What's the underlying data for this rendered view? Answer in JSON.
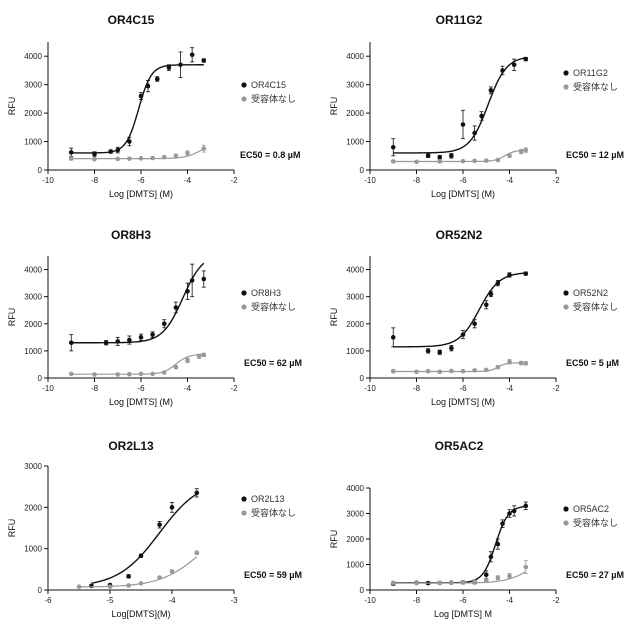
{
  "chart_data": [
    {
      "type": "scatter",
      "title": "OR4C15",
      "xlabel": "Log [DMTS]  (M)",
      "ylabel": "RFU",
      "xlim": [
        -10,
        -2
      ],
      "ylim": [
        0,
        4500
      ],
      "xticks": [
        "-10",
        "-8",
        "-6",
        "-4",
        "-2"
      ],
      "yticks": [
        "0",
        "1000",
        "2000",
        "3000",
        "4000"
      ],
      "legend_placement": "right",
      "annotation": "EC50 = 0.8 µM",
      "series": [
        {
          "name": "OR4C15",
          "color": "#111111",
          "x": [
            -9,
            -8,
            -7.3,
            -7,
            -6.5,
            -6,
            -5.7,
            -5.3,
            -4.8,
            -4.3,
            -3.8,
            -3.3
          ],
          "y": [
            620,
            560,
            650,
            700,
            1000,
            2600,
            2950,
            3200,
            3600,
            3700,
            4050,
            3850
          ],
          "err": [
            150,
            80,
            60,
            100,
            150,
            120,
            200,
            80,
            100,
            450,
            250,
            60
          ],
          "fit": {
            "bottom": 600,
            "top": 3700,
            "logec50": -6.1,
            "hill": 1.6
          }
        },
        {
          "name": "受容体なし",
          "color": "#999999",
          "x": [
            -9,
            -8,
            -7,
            -6.5,
            -6,
            -5.5,
            -5,
            -4.5,
            -4,
            -3.3
          ],
          "y": [
            400,
            380,
            390,
            400,
            410,
            420,
            450,
            500,
            600,
            750
          ],
          "err": [
            40,
            30,
            30,
            30,
            30,
            30,
            40,
            50,
            70,
            120
          ],
          "fit": {
            "bottom": 400,
            "top": 1100,
            "logec50": -3.3,
            "hill": 1.2
          }
        }
      ]
    },
    {
      "type": "scatter",
      "title": "OR11G2",
      "xlabel": "Log [DMTS]  (M)",
      "ylabel": "RFU",
      "xlim": [
        -10,
        -2
      ],
      "ylim": [
        0,
        4500
      ],
      "xticks": [
        "-10",
        "-8",
        "-6",
        "-4",
        "-2"
      ],
      "yticks": [
        "0",
        "1000",
        "2000",
        "3000",
        "4000"
      ],
      "legend_placement": "right",
      "annotation": "EC50 = 12 µM",
      "series": [
        {
          "name": "OR11G2",
          "color": "#111111",
          "x": [
            -9,
            -7.5,
            -7,
            -6.5,
            -6,
            -5.5,
            -5.2,
            -4.8,
            -4.3,
            -3.8,
            -3.3
          ],
          "y": [
            800,
            500,
            450,
            500,
            1600,
            1300,
            1900,
            2800,
            3500,
            3700,
            3900
          ],
          "err": [
            300,
            60,
            60,
            80,
            500,
            250,
            150,
            120,
            150,
            200,
            60
          ],
          "fit": {
            "bottom": 600,
            "top": 4000,
            "logec50": -4.92,
            "hill": 1.1
          }
        },
        {
          "name": "受容体なし",
          "color": "#999999",
          "x": [
            -9,
            -8,
            -7,
            -6,
            -5.5,
            -5,
            -4.5,
            -4,
            -3.5,
            -3.3
          ],
          "y": [
            300,
            290,
            300,
            310,
            320,
            330,
            350,
            500,
            650,
            700
          ],
          "err": [
            40,
            30,
            30,
            30,
            30,
            30,
            40,
            60,
            80,
            80
          ],
          "fit": {
            "bottom": 300,
            "top": 700,
            "logec50": -4.2,
            "hill": 2.0
          }
        }
      ]
    },
    {
      "type": "scatter",
      "title": "OR8H3",
      "xlabel": "Log [DMTS]  (M)",
      "ylabel": "RFU",
      "xlim": [
        -10,
        -2
      ],
      "ylim": [
        0,
        4500
      ],
      "xticks": [
        "-10",
        "-8",
        "-6",
        "-4",
        "-2"
      ],
      "yticks": [
        "0",
        "1000",
        "2000",
        "3000",
        "4000"
      ],
      "legend_placement": "right",
      "annotation": "EC50 = 62 µM",
      "series": [
        {
          "name": "OR8H3",
          "color": "#111111",
          "x": [
            -9,
            -7.5,
            -7,
            -6.5,
            -6,
            -5.5,
            -5,
            -4.5,
            -4,
            -3.8,
            -3.3
          ],
          "y": [
            1300,
            1300,
            1350,
            1400,
            1500,
            1600,
            2000,
            2600,
            3200,
            3600,
            3650
          ],
          "err": [
            300,
            80,
            150,
            150,
            120,
            100,
            150,
            200,
            300,
            600,
            300
          ],
          "fit": {
            "bottom": 1300,
            "top": 4600,
            "logec50": -4.2,
            "hill": 1.0
          }
        },
        {
          "name": "受容体なし",
          "color": "#999999",
          "x": [
            -9,
            -8,
            -7,
            -6.5,
            -6,
            -5.5,
            -5,
            -4.5,
            -4,
            -3.5,
            -3.3
          ],
          "y": [
            150,
            130,
            130,
            140,
            150,
            150,
            200,
            400,
            650,
            800,
            850
          ],
          "err": [
            30,
            20,
            20,
            20,
            20,
            20,
            30,
            60,
            80,
            80,
            60
          ],
          "fit": {
            "bottom": 140,
            "top": 880,
            "logec50": -4.5,
            "hill": 1.6
          }
        }
      ]
    },
    {
      "type": "scatter",
      "title": "OR52N2",
      "xlabel": "Log [DMTS]  (M)",
      "ylabel": "RFU",
      "xlim": [
        -10,
        -2
      ],
      "ylim": [
        0,
        4500
      ],
      "xticks": [
        "-10",
        "-8",
        "-6",
        "-4",
        "-2"
      ],
      "yticks": [
        "0",
        "1000",
        "2000",
        "3000",
        "4000"
      ],
      "legend_placement": "right",
      "annotation": "EC50 = 5 µM",
      "series": [
        {
          "name": "OR52N2",
          "color": "#111111",
          "x": [
            -9,
            -7.5,
            -7,
            -6.5,
            -6,
            -5.5,
            -5,
            -4.8,
            -4.5,
            -4,
            -3.3
          ],
          "y": [
            1500,
            1000,
            950,
            1100,
            1600,
            2000,
            2700,
            3100,
            3500,
            3800,
            3850
          ],
          "err": [
            350,
            80,
            80,
            100,
            150,
            150,
            150,
            100,
            100,
            80,
            60
          ],
          "fit": {
            "bottom": 1150,
            "top": 3900,
            "logec50": -5.3,
            "hill": 1.0
          }
        },
        {
          "name": "受容体なし",
          "color": "#999999",
          "x": [
            -9,
            -8,
            -7.5,
            -7,
            -6.5,
            -6,
            -5.5,
            -5,
            -4.5,
            -4,
            -3.5,
            -3.3
          ],
          "y": [
            250,
            230,
            250,
            230,
            260,
            250,
            280,
            300,
            400,
            600,
            550,
            540
          ],
          "err": [
            60,
            40,
            40,
            40,
            40,
            40,
            40,
            40,
            60,
            80,
            60,
            60
          ],
          "fit": {
            "bottom": 240,
            "top": 560,
            "logec50": -4.5,
            "hill": 2.5
          }
        }
      ]
    },
    {
      "type": "scatter",
      "title": "OR2L13",
      "xlabel": "Log[DMTS](M)",
      "ylabel": "RFU",
      "xlim": [
        -6,
        -3
      ],
      "ylim": [
        0,
        3000
      ],
      "xticks": [
        "-6",
        "-5",
        "-4",
        "-3"
      ],
      "yticks": [
        "0",
        "1000",
        "2000",
        "3000"
      ],
      "legend_placement": "right",
      "annotation": "EC50 = 59 µM",
      "series": [
        {
          "name": "OR2L13",
          "color": "#111111",
          "x": [
            -5.3,
            -5,
            -4.7,
            -4.5,
            -4.2,
            -4,
            -3.6
          ],
          "y": [
            100,
            120,
            330,
            830,
            1580,
            2000,
            2350
          ],
          "err": [
            30,
            30,
            40,
            40,
            80,
            120,
            100
          ],
          "fit": {
            "bottom": 70,
            "top": 2700,
            "logec50": -4.2,
            "hill": 1.3
          }
        },
        {
          "name": "受容体なし",
          "color": "#999999",
          "x": [
            -5.5,
            -5,
            -4.7,
            -4.5,
            -4.2,
            -4,
            -3.6
          ],
          "y": [
            80,
            80,
            110,
            160,
            300,
            450,
            900
          ],
          "err": [
            20,
            20,
            20,
            20,
            30,
            30,
            40
          ],
          "fit": {
            "bottom": 70,
            "top": 1800,
            "logec50": -3.5,
            "hill": 1.3
          }
        }
      ]
    },
    {
      "type": "scatter",
      "title": "OR5AC2",
      "xlabel": "Log [DMTS]  M",
      "ylabel": "RFU",
      "xlim": [
        -10,
        -2
      ],
      "ylim": [
        0,
        4000
      ],
      "xticks": [
        "-10",
        "-8",
        "-6",
        "-4",
        "-2"
      ],
      "yticks": [
        "0",
        "1000",
        "2000",
        "3000",
        "4000"
      ],
      "legend_placement": "right",
      "annotation": "EC50 = 27 µM",
      "series": [
        {
          "name": "OR5AC2",
          "color": "#111111",
          "x": [
            -9,
            -8,
            -7.5,
            -7,
            -6.5,
            -6,
            -5.5,
            -5,
            -4.8,
            -4.5,
            -4.3,
            -4,
            -3.8,
            -3.3
          ],
          "y": [
            250,
            280,
            270,
            280,
            290,
            300,
            320,
            600,
            1300,
            1800,
            2600,
            3000,
            3100,
            3300
          ],
          "err": [
            60,
            50,
            50,
            50,
            50,
            60,
            80,
            150,
            200,
            200,
            150,
            150,
            200,
            150
          ],
          "fit": {
            "bottom": 280,
            "top": 3300,
            "logec50": -4.6,
            "hill": 1.6
          }
        },
        {
          "name": "受容体なし",
          "color": "#999999",
          "x": [
            -9,
            -8,
            -7,
            -6.5,
            -6,
            -5.5,
            -5,
            -4.5,
            -4,
            -3.3
          ],
          "y": [
            280,
            270,
            280,
            290,
            300,
            320,
            380,
            480,
            550,
            900
          ],
          "err": [
            50,
            40,
            40,
            40,
            40,
            50,
            60,
            80,
            100,
            250
          ],
          "fit": {
            "bottom": 270,
            "top": 1500,
            "logec50": -3.0,
            "hill": 0.8
          }
        }
      ]
    }
  ]
}
